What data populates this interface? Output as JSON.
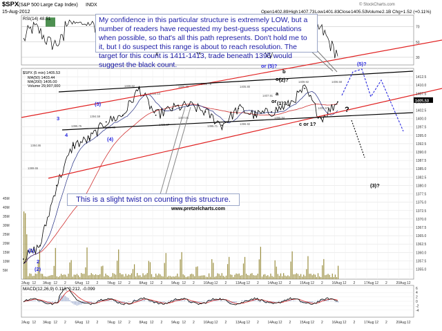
{
  "header": {
    "symbol": "$SPX",
    "name": "(S&P 500 Large Cap Index)",
    "exchange": "INDX",
    "date": "15-Aug-2012",
    "open_label": "Open",
    "open": "1402.89",
    "high_label": "High",
    "high": "1407.73",
    "low_label": "Low",
    "low": "1401.83",
    "close_label": "Close",
    "close": "1405.53",
    "volume_label": "Volume",
    "volume": "2.1B",
    "chg_label": "Chg",
    "chg": "+1.52 (+0.11%)",
    "watermark": "© StockCharts.com"
  },
  "rsi_label": "RSI(14) 48.51",
  "price_legend": {
    "title": "$SPX (5 min) 1405.53",
    "ma1": "MA(50) 1403.44",
    "ma2": "MA(200) 1405.00",
    "vol": "Volume 29,907,000"
  },
  "macd_label": "MACD(12,26,9) 0.113, 0.212, -0.099",
  "annotation_top": "My confidence in this particular structure is extremely LOW, but a number of readers have requested my best-guess speculations when possible, so that's all this path represents.  Don't hold me to it, but I do suspect this range is about to reach resolution.  The target for this count is 1411-1413, trade beneath 1395 would suggest the black count.",
  "annotation_bottom": "This is a slight twist on counting this structure.",
  "site": "www.pretzelcharts.com",
  "colors": {
    "price": "#000000",
    "ma200": "#d03030",
    "ma50": "#1f2a80",
    "red_channel": "#e02020",
    "black_channel": "#000000",
    "blue_path": "#2a2ae0",
    "rsi": "#000000",
    "rsi_fill": "#2e7d32",
    "volume": "#7a6a00",
    "macd": "#000000",
    "macd_signal": "#d02020",
    "histogram": "#7a8fbf",
    "text_blue": "#1a1aa6"
  },
  "chart_data": {
    "type": "line",
    "series": [
      {
        "name": "$SPX (5 min)",
        "x": [
          "2 Aug",
          "2 Aug 12",
          "3 Aug",
          "3 Aug 12",
          "6 Aug",
          "6 Aug 12",
          "7 Aug",
          "7 Aug 12",
          "8 Aug",
          "8 Aug 12",
          "9 Aug",
          "9 Aug 12",
          "10 Aug",
          "10 Aug 12",
          "13 Aug",
          "13 Aug 12",
          "14 Aug",
          "14 Aug 12",
          "15 Aug",
          "15 Aug 12"
        ],
        "values": [
          1358,
          1362,
          1380,
          1392,
          1394,
          1399,
          1401,
          1409,
          1401,
          1403,
          1404,
          1402,
          1398,
          1403,
          1401,
          1402,
          1404,
          1409,
          1400,
          1405
        ]
      }
    ],
    "xlabel": "",
    "ylabel": "",
    "x_ticks": [
      "2Aug",
      "12",
      "3Aug",
      "12",
      "2",
      "6Aug",
      "12",
      "2",
      "7Aug",
      "12",
      "2",
      "8Aug",
      "12",
      "2",
      "9Aug",
      "12",
      "2",
      "10Aug",
      "12",
      "2",
      "13Aug",
      "12",
      "2",
      "14Aug",
      "12",
      "2",
      "15Aug",
      "12",
      "2",
      "16Aug",
      "12",
      "2",
      "17Aug",
      "12",
      "2",
      "20Aug",
      "12"
    ],
    "y_ticks": [
      1355,
      1357.5,
      1360,
      1362.5,
      1365,
      1367.5,
      1370,
      1372.5,
      1375,
      1377.5,
      1380,
      1382.5,
      1385,
      1387.5,
      1390,
      1392.5,
      1395,
      1397.5,
      1400,
      1402.5,
      1405,
      1407.5,
      1410,
      1412.5
    ],
    "ylim": [
      1352,
      1415
    ],
    "rsi_ticks": [
      30,
      50,
      70
    ],
    "volume_ticks": [
      "5M",
      "10M",
      "15M",
      "20M",
      "25M",
      "30M",
      "35M",
      "40M",
      "45M"
    ],
    "macd_ticks": [
      -4,
      -2,
      0,
      2,
      4,
      6
    ],
    "last_price_tag": "1405.53",
    "price_tags": [
      "1409.62",
      "1404.14",
      "1405.36",
      "1406.78",
      "1405.80",
      "1407.91",
      "1409.92",
      "1406.58",
      "1403.67",
      "1395.75",
      "1394.65",
      "1400.67",
      "1397.05",
      "1395.71",
      "1396.92",
      "1395.84",
      "1394.59",
      "1389.65",
      "1384.86"
    ],
    "wave_labels": [
      {
        "text": "(1)",
        "color": "blue"
      },
      {
        "text": "2",
        "color": "blue"
      },
      {
        "text": "(2)",
        "color": "blue"
      },
      {
        "text": "3",
        "color": "blue"
      },
      {
        "text": "4",
        "color": "blue"
      },
      {
        "text": "(3)",
        "color": "blue"
      },
      {
        "text": "(4)",
        "color": "blue"
      },
      {
        "text": "or (5)?",
        "color": "blue"
      },
      {
        "text": "b",
        "color": "black"
      },
      {
        "text": "or",
        "color": "black"
      },
      {
        "text": "(2)?",
        "color": "black"
      },
      {
        "text": "a",
        "color": "black"
      },
      {
        "text": "or",
        "color": "black"
      },
      {
        "text": "(1)?",
        "color": "black"
      },
      {
        "text": "c or 1?",
        "color": "black"
      },
      {
        "text": "?",
        "color": "black"
      },
      {
        "text": "(3)?",
        "color": "black"
      },
      {
        "text": "(5)?",
        "color": "blue"
      }
    ]
  }
}
